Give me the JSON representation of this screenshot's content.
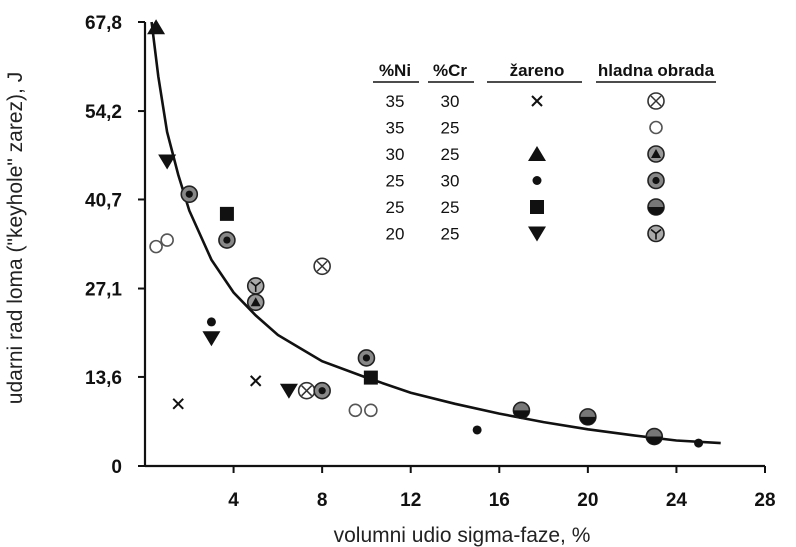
{
  "chart_data": {
    "type": "scatter",
    "xlabel": "volumni udio sigma-faze, %",
    "ylabel": "udarni rad loma (\"keyhole\" zarez), J",
    "xlim": [
      0,
      28
    ],
    "ylim": [
      0,
      67.8
    ],
    "x_ticks": [
      "4",
      "8",
      "12",
      "16",
      "20",
      "24",
      "28"
    ],
    "y_ticks": [
      "0",
      "13,6",
      "27,1",
      "40,7",
      "54,2",
      "67,8"
    ],
    "legend": {
      "headers": {
        "ni": "%Ni",
        "cr": "%Cr",
        "annealed": "žareno",
        "cold_worked": "hladna obrada"
      },
      "rows": [
        {
          "ni": "35",
          "cr": "30",
          "annealed_symbol": "cross",
          "cold_symbol": "circle-x"
        },
        {
          "ni": "35",
          "cr": "25",
          "annealed_symbol": "",
          "cold_symbol": "open-circle"
        },
        {
          "ni": "30",
          "cr": "25",
          "annealed_symbol": "triangle-up",
          "cold_symbol": "circle-triangle"
        },
        {
          "ni": "25",
          "cr": "30",
          "annealed_symbol": "dot",
          "cold_symbol": "circle-star"
        },
        {
          "ni": "25",
          "cr": "25",
          "annealed_symbol": "square",
          "cold_symbol": "circle-half"
        },
        {
          "ni": "20",
          "cr": "25",
          "annealed_symbol": "triangle-down",
          "cold_symbol": "circle-y"
        }
      ]
    },
    "series": [
      {
        "marker": "cross",
        "points": [
          [
            1.5,
            9.5
          ],
          [
            5.0,
            13.0
          ]
        ]
      },
      {
        "marker": "triangle-up",
        "points": [
          [
            0.5,
            67.0
          ]
        ]
      },
      {
        "marker": "dot",
        "points": [
          [
            3.0,
            22.0
          ],
          [
            15.0,
            5.5
          ],
          [
            25.0,
            3.5
          ]
        ]
      },
      {
        "marker": "square",
        "points": [
          [
            3.7,
            38.5
          ],
          [
            10.2,
            13.5
          ]
        ]
      },
      {
        "marker": "triangle-down",
        "points": [
          [
            1.0,
            46.5
          ],
          [
            3.0,
            19.5
          ],
          [
            6.5,
            11.5
          ]
        ]
      },
      {
        "marker": "circle-x",
        "points": [
          [
            8.0,
            30.5
          ],
          [
            7.3,
            11.5
          ]
        ]
      },
      {
        "marker": "open-circle",
        "points": [
          [
            0.5,
            33.5
          ],
          [
            1.0,
            34.5
          ],
          [
            9.5,
            8.5
          ],
          [
            10.2,
            8.5
          ]
        ]
      },
      {
        "marker": "circle-triangle",
        "points": [
          [
            5.0,
            25.0
          ]
        ]
      },
      {
        "marker": "circle-star",
        "points": [
          [
            2.0,
            41.5
          ],
          [
            3.7,
            34.5
          ],
          [
            10.0,
            16.5
          ],
          [
            8.0,
            11.5
          ]
        ]
      },
      {
        "marker": "circle-half",
        "points": [
          [
            17.0,
            8.5
          ],
          [
            20.0,
            7.5
          ],
          [
            23.0,
            4.5
          ]
        ]
      },
      {
        "marker": "circle-y",
        "points": [
          [
            5.0,
            27.5
          ]
        ]
      }
    ],
    "fit_curve": {
      "points": [
        [
          0.3,
          67.8
        ],
        [
          0.6,
          59.5
        ],
        [
          1.0,
          51.0
        ],
        [
          1.5,
          44.5
        ],
        [
          2.0,
          39.0
        ],
        [
          3.0,
          31.5
        ],
        [
          4.0,
          26.5
        ],
        [
          5.0,
          23.0
        ],
        [
          6.0,
          20.0
        ],
        [
          7.0,
          18.0
        ],
        [
          8.0,
          16.0
        ],
        [
          10.0,
          13.5
        ],
        [
          12.0,
          11.2
        ],
        [
          14.0,
          9.5
        ],
        [
          16.0,
          8.0
        ],
        [
          18.0,
          6.7
        ],
        [
          20.0,
          5.6
        ],
        [
          22.0,
          4.7
        ],
        [
          24.0,
          3.9
        ],
        [
          26.0,
          3.5
        ]
      ]
    }
  }
}
